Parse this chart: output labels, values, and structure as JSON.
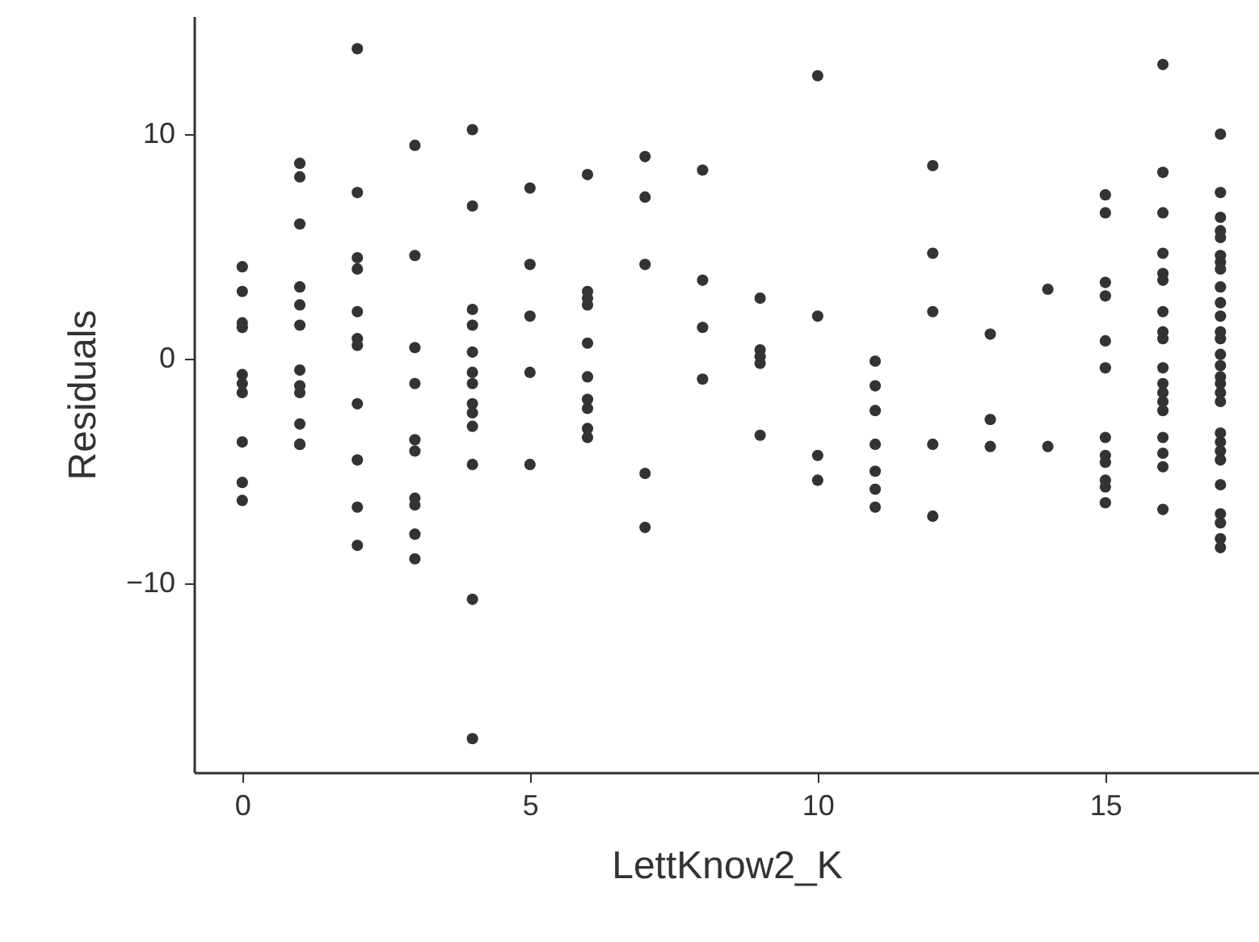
{
  "chart_data": {
    "type": "scatter",
    "xlabel": "LettKnow2_K",
    "ylabel": "Residuals",
    "marker": "circle",
    "grid": false,
    "xlim": [
      -0.84,
      17.67
    ],
    "ylim": [
      -18.4,
      15.25
    ],
    "xticks": [
      0,
      5,
      10,
      15
    ],
    "yticks": [
      -10,
      0,
      10
    ],
    "series": [
      {
        "color": "#333333",
        "x": [
          0,
          0,
          0,
          0,
          0,
          0,
          0,
          0,
          0,
          0,
          1,
          1,
          1,
          1,
          1,
          1,
          1,
          1,
          1,
          1,
          1,
          1,
          2,
          2,
          2,
          2,
          2,
          2,
          2,
          2,
          2,
          2,
          2,
          3,
          3,
          3,
          3,
          3,
          3,
          3,
          3,
          3,
          3,
          4,
          4,
          4,
          4,
          4,
          4,
          4,
          4,
          4,
          4,
          4,
          4,
          4,
          5,
          5,
          5,
          5,
          5,
          6,
          6,
          6,
          6,
          6,
          6,
          6,
          6,
          6,
          6,
          7,
          7,
          7,
          7,
          7,
          8,
          8,
          8,
          8,
          9,
          9,
          9,
          9,
          9,
          10,
          10,
          10,
          10,
          11,
          11,
          11,
          11,
          11,
          11,
          11,
          12,
          12,
          12,
          12,
          12,
          13,
          13,
          13,
          14,
          14,
          15,
          15,
          15,
          15,
          15,
          15,
          15,
          15,
          15,
          15,
          15,
          15,
          16,
          16,
          16,
          16,
          16,
          16,
          16,
          16,
          16,
          16,
          16,
          16,
          16,
          16,
          16,
          16,
          16,
          16,
          17,
          17,
          17,
          17,
          17,
          17,
          17,
          17,
          17,
          17,
          17,
          17,
          17,
          17,
          17,
          17,
          17,
          17,
          17,
          17,
          17,
          17,
          17,
          17,
          17,
          17,
          17,
          17
        ],
        "values": [
          4.1,
          3.0,
          1.6,
          1.4,
          -0.7,
          -1.1,
          -1.5,
          -3.7,
          -5.5,
          -6.3,
          8.7,
          8.1,
          6.0,
          3.2,
          2.4,
          1.5,
          -0.5,
          -1.2,
          -1.5,
          -2.9,
          -3.8,
          -3.8,
          13.8,
          7.4,
          4.5,
          4.0,
          2.1,
          0.9,
          0.6,
          -2.0,
          -4.5,
          -6.6,
          -8.3,
          9.5,
          4.6,
          0.5,
          -1.1,
          -3.6,
          -4.1,
          -6.2,
          -6.5,
          -7.8,
          -8.9,
          10.2,
          6.8,
          2.2,
          1.5,
          0.3,
          -0.6,
          -1.1,
          -2.0,
          -2.4,
          -3.0,
          -4.7,
          -10.7,
          -16.9,
          7.6,
          4.2,
          1.9,
          -0.6,
          -4.7,
          8.2,
          3.0,
          2.7,
          2.4,
          0.7,
          -0.8,
          -1.8,
          -2.2,
          -3.1,
          -3.5,
          9.0,
          7.2,
          4.2,
          -5.1,
          -7.5,
          8.4,
          3.5,
          1.4,
          -0.9,
          2.7,
          0.4,
          0.1,
          -0.2,
          -3.4,
          12.6,
          1.9,
          -4.3,
          -5.4,
          -0.1,
          -1.2,
          -2.3,
          -3.8,
          -5.0,
          -5.8,
          -6.6,
          8.6,
          4.7,
          2.1,
          -3.8,
          -7.0,
          1.1,
          -2.7,
          -3.9,
          3.1,
          -3.9,
          7.3,
          6.5,
          3.4,
          2.8,
          0.8,
          -0.4,
          -3.5,
          -4.3,
          -4.6,
          -5.4,
          -5.7,
          -6.4,
          13.1,
          8.3,
          6.5,
          4.7,
          3.8,
          3.5,
          2.1,
          1.2,
          0.9,
          -0.4,
          -1.1,
          -1.5,
          -1.9,
          -2.3,
          -3.5,
          -4.2,
          -4.8,
          -6.7,
          10.0,
          7.4,
          6.3,
          5.7,
          5.4,
          4.6,
          4.3,
          4.0,
          3.2,
          2.5,
          1.9,
          1.2,
          0.9,
          0.2,
          -0.3,
          -0.8,
          -1.1,
          -1.5,
          -1.9,
          -3.3,
          -3.7,
          -4.1,
          -4.5,
          -5.6,
          -6.9,
          -7.3,
          -8.0,
          -8.4
        ]
      }
    ]
  }
}
